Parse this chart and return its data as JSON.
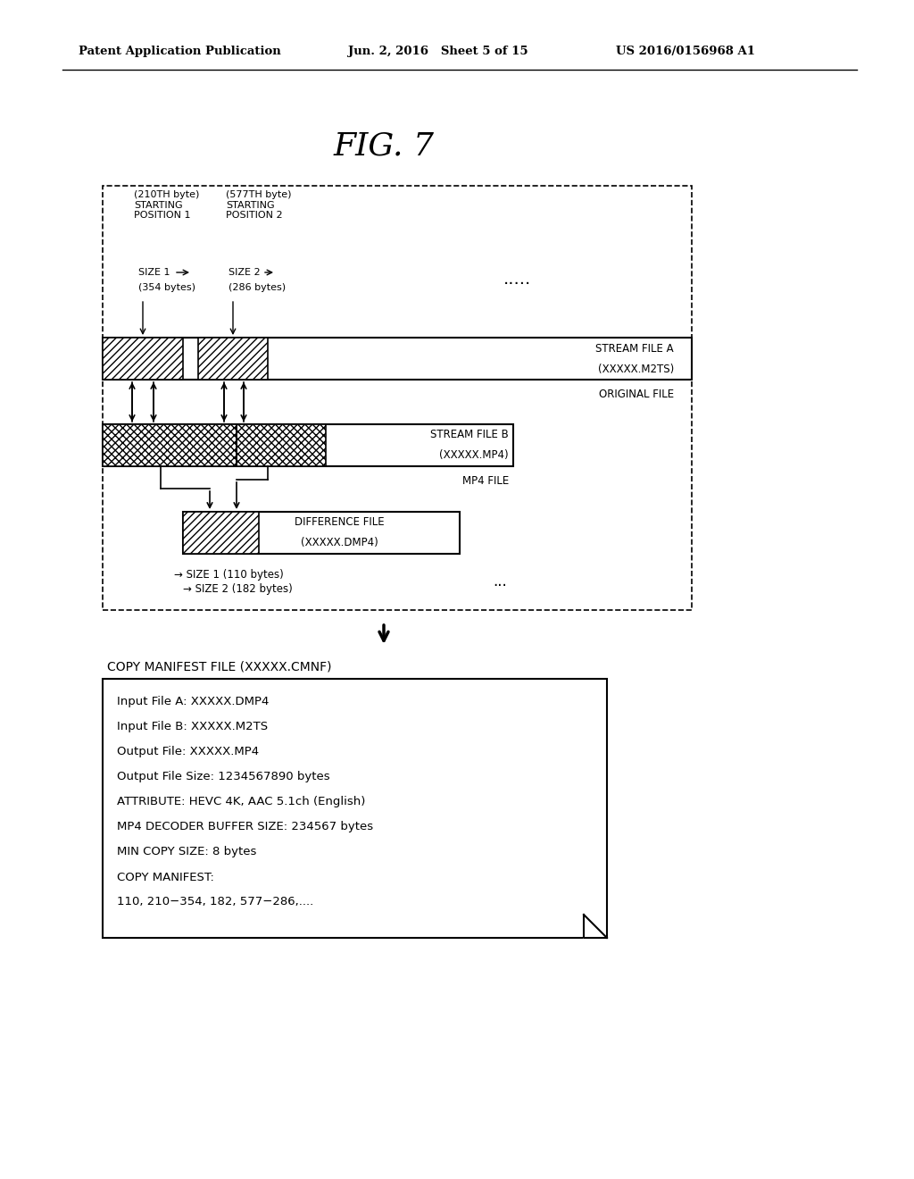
{
  "title": "FIG. 7",
  "header_left": "Patent Application Publication",
  "header_center": "Jun. 2, 2016   Sheet 5 of 15",
  "header_right": "US 2016/0156968 A1",
  "bg_color": "#ffffff",
  "pos1_label": "(210TH byte)\nSTARTING\nPOSITION 1",
  "pos2_label": "(577TH byte)\nSTARTING\nPOSITION 2",
  "size1_label": "SIZE 1",
  "size2_label": "SIZE 2",
  "size1_bytes": "(354 bytes)",
  "size2_bytes": "(286 bytes)",
  "stream_a_line1": "STREAM FILE A",
  "stream_a_line2": "(XXXXX.M2TS)",
  "original_file_label": "ORIGINAL FILE",
  "stream_b_line1": "STREAM FILE B",
  "stream_b_line2": "(XXXXX.MP4)",
  "mp4_file_label": "MP4 FILE",
  "diff_line1": "DIFFERENCE FILE",
  "diff_line2": "(XXXXX.DMP4)",
  "size1_result": "→ SIZE 1 (110 bytes)",
  "size2_result": "→ SIZE 2 (182 bytes)",
  "dots_top": ".....",
  "dots_bottom": "...",
  "copy_manifest_title": "COPY MANIFEST FILE (XXXXX.CMNF)",
  "manifest_lines": [
    "Input File A: XXXXX.DMP4",
    "Input File B: XXXXX.M2TS",
    "Output File: XXXXX.MP4",
    "Output File Size: 1234567890 bytes",
    "ATTRIBUTE: HEVC 4K, AAC 5.1ch (English)",
    "MP4 DECODER BUFFER SIZE: 234567 bytes",
    "MIN COPY SIZE: 8 bytes",
    "COPY MANIFEST:",
    "110, 210−354, 182, 577−286,...."
  ]
}
